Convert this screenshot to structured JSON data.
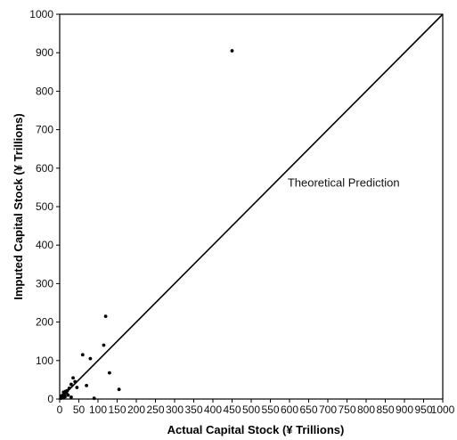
{
  "chart_data": {
    "type": "scatter",
    "title": "",
    "xlabel": "Actual Capital Stock (¥ Trillions)",
    "ylabel": "Imputed Capital Stock (¥ Trillions)",
    "xlim": [
      0,
      1000
    ],
    "ylim": [
      0,
      1000
    ],
    "xticks": [
      0,
      50,
      100,
      150,
      200,
      250,
      300,
      350,
      400,
      450,
      500,
      550,
      600,
      650,
      700,
      750,
      800,
      850,
      900,
      950,
      1000
    ],
    "yticks": [
      0,
      100,
      200,
      300,
      400,
      500,
      600,
      700,
      800,
      900,
      1000
    ],
    "grid": false,
    "reference_line": {
      "label": "Theoretical Prediction",
      "from": [
        0,
        0
      ],
      "to": [
        1000,
        1000
      ]
    },
    "points": [
      {
        "x": 450,
        "y": 905
      },
      {
        "x": 120,
        "y": 215
      },
      {
        "x": 115,
        "y": 140
      },
      {
        "x": 60,
        "y": 115
      },
      {
        "x": 80,
        "y": 105
      },
      {
        "x": 130,
        "y": 68
      },
      {
        "x": 35,
        "y": 55
      },
      {
        "x": 40,
        "y": 45
      },
      {
        "x": 30,
        "y": 38
      },
      {
        "x": 70,
        "y": 35
      },
      {
        "x": 45,
        "y": 30
      },
      {
        "x": 25,
        "y": 28
      },
      {
        "x": 155,
        "y": 25
      },
      {
        "x": 20,
        "y": 22
      },
      {
        "x": 15,
        "y": 20
      },
      {
        "x": 10,
        "y": 18
      },
      {
        "x": 18,
        "y": 15
      },
      {
        "x": 12,
        "y": 12
      },
      {
        "x": 8,
        "y": 10
      },
      {
        "x": 22,
        "y": 10
      },
      {
        "x": 5,
        "y": 8
      },
      {
        "x": 14,
        "y": 6
      },
      {
        "x": 30,
        "y": 5
      },
      {
        "x": 6,
        "y": 4
      },
      {
        "x": 10,
        "y": 3
      },
      {
        "x": 90,
        "y": 2
      },
      {
        "x": 3,
        "y": 2
      }
    ]
  }
}
